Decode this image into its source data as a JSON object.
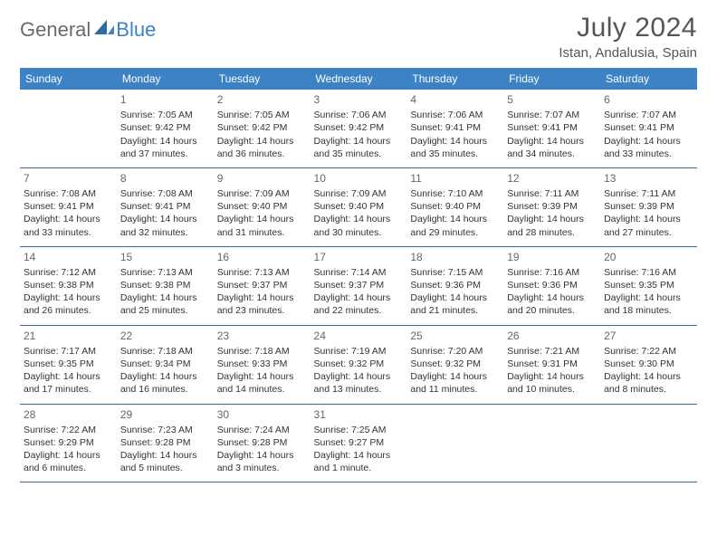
{
  "brand": {
    "part1": "General",
    "part2": "Blue"
  },
  "title": "July 2024",
  "location": "Istan, Andalusia, Spain",
  "colors": {
    "header_bg": "#3d82c4",
    "header_text": "#ffffff",
    "row_border": "#3d6a99",
    "text": "#333333",
    "title_text": "#555555",
    "logo_gray": "#6a6a6a",
    "logo_blue": "#3d82c4"
  },
  "weekdays": [
    "Sunday",
    "Monday",
    "Tuesday",
    "Wednesday",
    "Thursday",
    "Friday",
    "Saturday"
  ],
  "weeks": [
    [
      null,
      {
        "n": "1",
        "sr": "7:05 AM",
        "ss": "9:42 PM",
        "dl": "14 hours and 37 minutes."
      },
      {
        "n": "2",
        "sr": "7:05 AM",
        "ss": "9:42 PM",
        "dl": "14 hours and 36 minutes."
      },
      {
        "n": "3",
        "sr": "7:06 AM",
        "ss": "9:42 PM",
        "dl": "14 hours and 35 minutes."
      },
      {
        "n": "4",
        "sr": "7:06 AM",
        "ss": "9:41 PM",
        "dl": "14 hours and 35 minutes."
      },
      {
        "n": "5",
        "sr": "7:07 AM",
        "ss": "9:41 PM",
        "dl": "14 hours and 34 minutes."
      },
      {
        "n": "6",
        "sr": "7:07 AM",
        "ss": "9:41 PM",
        "dl": "14 hours and 33 minutes."
      }
    ],
    [
      {
        "n": "7",
        "sr": "7:08 AM",
        "ss": "9:41 PM",
        "dl": "14 hours and 33 minutes."
      },
      {
        "n": "8",
        "sr": "7:08 AM",
        "ss": "9:41 PM",
        "dl": "14 hours and 32 minutes."
      },
      {
        "n": "9",
        "sr": "7:09 AM",
        "ss": "9:40 PM",
        "dl": "14 hours and 31 minutes."
      },
      {
        "n": "10",
        "sr": "7:09 AM",
        "ss": "9:40 PM",
        "dl": "14 hours and 30 minutes."
      },
      {
        "n": "11",
        "sr": "7:10 AM",
        "ss": "9:40 PM",
        "dl": "14 hours and 29 minutes."
      },
      {
        "n": "12",
        "sr": "7:11 AM",
        "ss": "9:39 PM",
        "dl": "14 hours and 28 minutes."
      },
      {
        "n": "13",
        "sr": "7:11 AM",
        "ss": "9:39 PM",
        "dl": "14 hours and 27 minutes."
      }
    ],
    [
      {
        "n": "14",
        "sr": "7:12 AM",
        "ss": "9:38 PM",
        "dl": "14 hours and 26 minutes."
      },
      {
        "n": "15",
        "sr": "7:13 AM",
        "ss": "9:38 PM",
        "dl": "14 hours and 25 minutes."
      },
      {
        "n": "16",
        "sr": "7:13 AM",
        "ss": "9:37 PM",
        "dl": "14 hours and 23 minutes."
      },
      {
        "n": "17",
        "sr": "7:14 AM",
        "ss": "9:37 PM",
        "dl": "14 hours and 22 minutes."
      },
      {
        "n": "18",
        "sr": "7:15 AM",
        "ss": "9:36 PM",
        "dl": "14 hours and 21 minutes."
      },
      {
        "n": "19",
        "sr": "7:16 AM",
        "ss": "9:36 PM",
        "dl": "14 hours and 20 minutes."
      },
      {
        "n": "20",
        "sr": "7:16 AM",
        "ss": "9:35 PM",
        "dl": "14 hours and 18 minutes."
      }
    ],
    [
      {
        "n": "21",
        "sr": "7:17 AM",
        "ss": "9:35 PM",
        "dl": "14 hours and 17 minutes."
      },
      {
        "n": "22",
        "sr": "7:18 AM",
        "ss": "9:34 PM",
        "dl": "14 hours and 16 minutes."
      },
      {
        "n": "23",
        "sr": "7:18 AM",
        "ss": "9:33 PM",
        "dl": "14 hours and 14 minutes."
      },
      {
        "n": "24",
        "sr": "7:19 AM",
        "ss": "9:32 PM",
        "dl": "14 hours and 13 minutes."
      },
      {
        "n": "25",
        "sr": "7:20 AM",
        "ss": "9:32 PM",
        "dl": "14 hours and 11 minutes."
      },
      {
        "n": "26",
        "sr": "7:21 AM",
        "ss": "9:31 PM",
        "dl": "14 hours and 10 minutes."
      },
      {
        "n": "27",
        "sr": "7:22 AM",
        "ss": "9:30 PM",
        "dl": "14 hours and 8 minutes."
      }
    ],
    [
      {
        "n": "28",
        "sr": "7:22 AM",
        "ss": "9:29 PM",
        "dl": "14 hours and 6 minutes."
      },
      {
        "n": "29",
        "sr": "7:23 AM",
        "ss": "9:28 PM",
        "dl": "14 hours and 5 minutes."
      },
      {
        "n": "30",
        "sr": "7:24 AM",
        "ss": "9:28 PM",
        "dl": "14 hours and 3 minutes."
      },
      {
        "n": "31",
        "sr": "7:25 AM",
        "ss": "9:27 PM",
        "dl": "14 hours and 1 minute."
      },
      null,
      null,
      null
    ]
  ],
  "labels": {
    "sunrise": "Sunrise:",
    "sunset": "Sunset:",
    "daylight": "Daylight:"
  }
}
